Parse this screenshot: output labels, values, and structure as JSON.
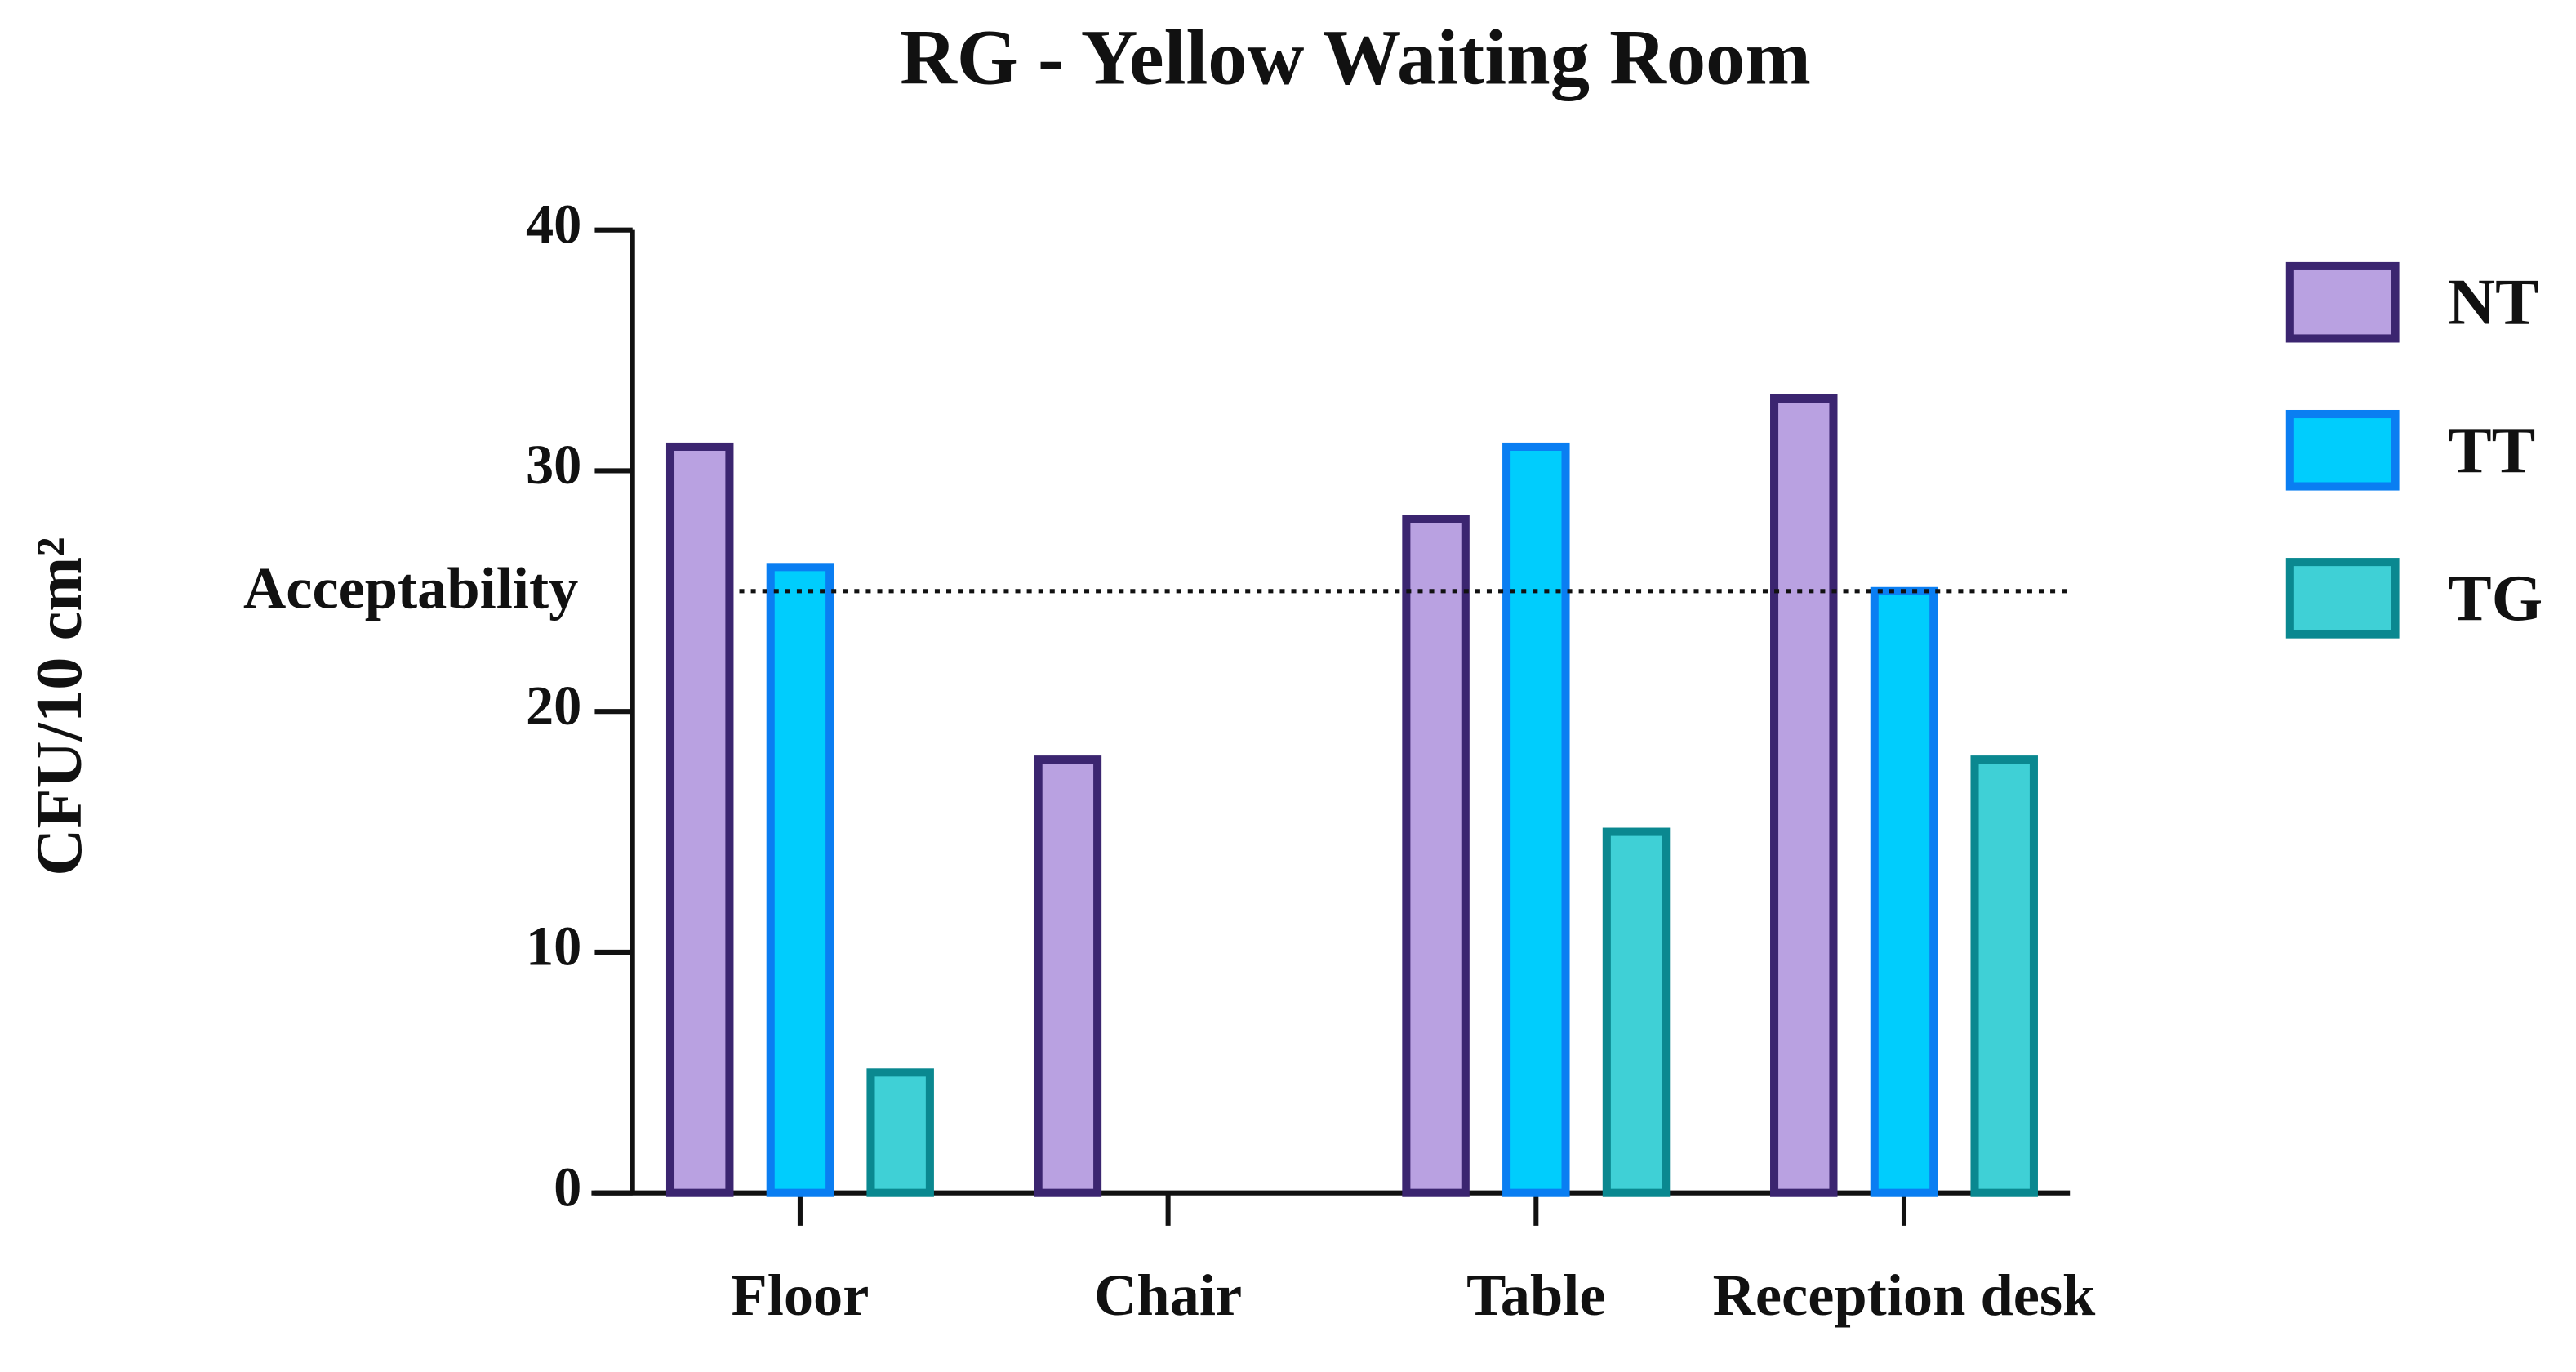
{
  "chart_data": {
    "type": "bar",
    "title": "RG - Yellow Waiting Room",
    "y_label": "CFU/10 cm²",
    "categories": [
      "Floor",
      "Chair",
      "Table",
      "Reception desk"
    ],
    "series": [
      {
        "name": "NT",
        "color": "#b9a1e1",
        "edge": "#3b2570",
        "values": [
          31,
          18,
          28,
          33
        ]
      },
      {
        "name": "TT",
        "color": "#00cdfd",
        "edge": "#0a7ef2",
        "values": [
          26,
          null,
          31,
          25
        ]
      },
      {
        "name": "TG",
        "color": "#3fd0d6",
        "edge": "#0a8890",
        "values": [
          5,
          null,
          15,
          18
        ]
      }
    ],
    "ylim": [
      0,
      40
    ],
    "yticks": [
      0,
      10,
      20,
      30,
      40
    ],
    "reference": {
      "label": "Acceptability",
      "value": 25
    }
  }
}
